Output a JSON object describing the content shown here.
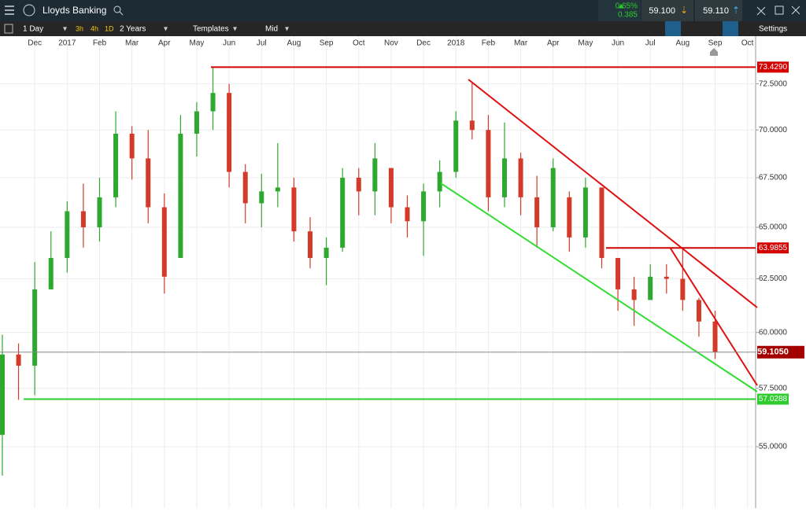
{
  "header": {
    "instrument": "Lloyds Banking",
    "change_pct": "0.65%",
    "change": "0.385",
    "sell": "59.100",
    "buy": "59.110"
  },
  "toolbar": {
    "interval": "1 Day",
    "quick": [
      "3h",
      "4h",
      "1D"
    ],
    "range": "2 Years",
    "templates": "Templates",
    "price_type": "Mid",
    "settings": "Settings"
  },
  "chart_data": {
    "type": "candlestick",
    "log_scale": true,
    "grid": true,
    "up_color": "#2fa82f",
    "down_color": "#d43a2a",
    "categories": [
      null,
      null,
      "Dec",
      null,
      "2017",
      null,
      "Feb",
      null,
      "Mar",
      null,
      "Apr",
      null,
      "May",
      null,
      "Jun",
      null,
      "Jul",
      null,
      "Aug",
      null,
      "Sep",
      null,
      "Oct",
      null,
      "Nov",
      null,
      "Dec",
      null,
      "2018",
      null,
      "Feb",
      null,
      "Mar",
      null,
      "Apr",
      null,
      "May",
      null,
      "Jun",
      null,
      "Jul",
      null,
      "Aug",
      null,
      "Sep",
      null,
      "Oct"
    ],
    "candles": [
      [
        55.5,
        59.9,
        53.8,
        59.0
      ],
      [
        59.0,
        59.5,
        57.0,
        58.5
      ],
      [
        58.5,
        63.3,
        57.2,
        62.0
      ],
      [
        62.0,
        64.8,
        62.0,
        63.5
      ],
      [
        63.5,
        66.3,
        62.8,
        65.8
      ],
      [
        65.8,
        67.2,
        64.0,
        65.0
      ],
      [
        65.0,
        67.5,
        64.3,
        66.5
      ],
      [
        66.5,
        71.0,
        66.0,
        69.8
      ],
      [
        69.8,
        70.2,
        67.4,
        68.5
      ],
      [
        68.5,
        70.0,
        65.2,
        66.0
      ],
      [
        66.0,
        66.7,
        61.8,
        62.6
      ],
      [
        63.5,
        70.8,
        64.2,
        69.8
      ],
      [
        69.8,
        71.5,
        68.6,
        71.0
      ],
      [
        71.0,
        73.43,
        70.0,
        72.0
      ],
      [
        72.0,
        72.5,
        67.0,
        67.8
      ],
      [
        67.8,
        68.2,
        65.2,
        66.2
      ],
      [
        66.2,
        67.7,
        65.0,
        66.8
      ],
      [
        66.8,
        69.3,
        66.0,
        67.0
      ],
      [
        67.0,
        67.5,
        64.3,
        64.8
      ],
      [
        64.8,
        65.5,
        63.0,
        63.5
      ],
      [
        63.5,
        64.5,
        62.2,
        64.0
      ],
      [
        64.0,
        68.0,
        63.8,
        67.5
      ],
      [
        67.5,
        68.0,
        65.6,
        66.8
      ],
      [
        66.8,
        69.3,
        65.6,
        68.5
      ],
      [
        68.0,
        68.0,
        65.2,
        66.0
      ],
      [
        66.0,
        66.6,
        64.5,
        65.3
      ],
      [
        65.3,
        67.2,
        63.6,
        66.8
      ],
      [
        66.8,
        68.4,
        66.0,
        67.8
      ],
      [
        67.8,
        71.0,
        67.5,
        70.5
      ],
      [
        70.5,
        72.6,
        69.5,
        70.0
      ],
      [
        70.0,
        70.8,
        65.8,
        66.5
      ],
      [
        66.5,
        70.4,
        66.0,
        68.5
      ],
      [
        68.5,
        68.8,
        65.6,
        66.5
      ],
      [
        66.5,
        67.6,
        64.0,
        65.0
      ],
      [
        65.0,
        68.5,
        64.8,
        68.0
      ],
      [
        66.5,
        66.8,
        63.8,
        64.5
      ],
      [
        64.5,
        67.5,
        64.0,
        67.0
      ],
      [
        67.0,
        67.0,
        63.0,
        63.5
      ],
      [
        63.5,
        63.5,
        61.0,
        62.0
      ],
      [
        62.0,
        62.6,
        60.3,
        61.5
      ],
      [
        61.5,
        63.2,
        61.5,
        62.6
      ],
      [
        62.6,
        63.2,
        61.8,
        62.5
      ],
      [
        62.5,
        63.99,
        61.0,
        61.5
      ],
      [
        61.5,
        61.6,
        59.8,
        60.5
      ],
      [
        60.5,
        61.0,
        58.8,
        59.1
      ],
      null,
      null
    ],
    "ylim": [
      52.49,
      75.18
    ],
    "yticks": [
      {
        "value": 55,
        "label": "55.0000"
      },
      {
        "value": 57.5,
        "label": "57.5000"
      },
      {
        "value": 60,
        "label": "60.0000"
      },
      {
        "value": 62.5,
        "label": "62.5000"
      },
      {
        "value": 65,
        "label": "65.0000"
      },
      {
        "value": 67.5,
        "label": "67.5000"
      },
      {
        "value": 70,
        "label": "70.0000"
      },
      {
        "value": 72.5,
        "label": "72.5000"
      }
    ],
    "levels": [
      {
        "value": 73.429,
        "label": "73.4290",
        "color": "#d40000"
      },
      {
        "value": 63.9855,
        "label": "63.9855",
        "color": "#d40000"
      },
      {
        "value": 57.0288,
        "label": "57.0288",
        "color": "#2ecc2e"
      }
    ],
    "current": {
      "value": 59.105,
      "label": "59.1050",
      "color": "#a30000",
      "line_color": "#888888"
    }
  }
}
